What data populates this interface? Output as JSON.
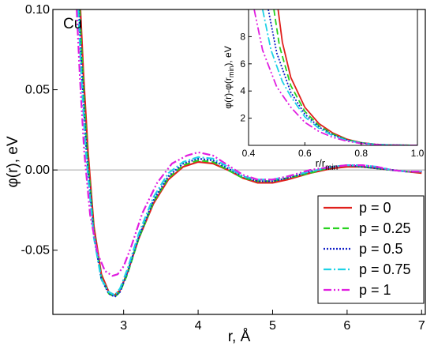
{
  "chart_data": [
    {
      "type": "line",
      "panel": "main",
      "title": "Cu",
      "xlabel": "r, Å",
      "ylabel": "φ(r), eV",
      "xlim": [
        2.05,
        7.05
      ],
      "ylim": [
        -0.09,
        0.1
      ],
      "xticks": [
        3,
        4,
        5,
        6,
        7
      ],
      "xtick_labels": [
        "3",
        "4",
        "5",
        "6",
        "7"
      ],
      "yticks": [
        -0.05,
        0.0,
        0.05,
        0.1
      ],
      "ytick_labels": [
        "-0.05",
        "0.00",
        "0.05",
        "0.10"
      ],
      "zero_line": true,
      "grid": false,
      "legend": "bottom-right",
      "series": [
        {
          "name": "p = 0",
          "color": "#e0201c",
          "dash": "solid",
          "x": [
            2.42,
            2.46,
            2.52,
            2.6,
            2.7,
            2.8,
            2.88,
            2.95,
            3.05,
            3.2,
            3.4,
            3.6,
            3.8,
            4.0,
            4.2,
            4.4,
            4.6,
            4.8,
            5.0,
            5.2,
            5.5,
            5.8,
            6.0,
            6.2,
            6.4,
            6.6,
            6.8,
            7.0
          ],
          "y": [
            0.1,
            0.06,
            0.012,
            -0.035,
            -0.065,
            -0.076,
            -0.078,
            -0.075,
            -0.064,
            -0.043,
            -0.021,
            -0.006,
            0.002,
            0.005,
            0.004,
            0.0,
            -0.005,
            -0.008,
            -0.008,
            -0.006,
            -0.002,
            0.001,
            0.002,
            0.002,
            0.001,
            0.0,
            -0.001,
            -0.002
          ]
        },
        {
          "name": "p = 0.25",
          "color": "#27d21f",
          "dash": "8,4",
          "x": [
            2.41,
            2.45,
            2.51,
            2.6,
            2.7,
            2.8,
            2.88,
            2.95,
            3.05,
            3.2,
            3.4,
            3.6,
            3.8,
            4.0,
            4.2,
            4.4,
            4.6,
            4.8,
            5.0,
            5.2,
            5.5,
            5.8,
            6.0,
            6.2,
            6.4,
            6.6,
            6.8,
            7.0
          ],
          "y": [
            0.1,
            0.06,
            0.012,
            -0.038,
            -0.067,
            -0.077,
            -0.079,
            -0.076,
            -0.065,
            -0.043,
            -0.02,
            -0.005,
            0.003,
            0.006,
            0.005,
            0.0,
            -0.005,
            -0.007,
            -0.007,
            -0.005,
            -0.002,
            0.002,
            0.003,
            0.002,
            0.001,
            0.0,
            -0.001,
            -0.001
          ]
        },
        {
          "name": "p = 0.5",
          "color": "#1320c8",
          "dash": "2,2",
          "x": [
            2.4,
            2.44,
            2.5,
            2.6,
            2.7,
            2.8,
            2.88,
            2.95,
            3.05,
            3.2,
            3.4,
            3.6,
            3.8,
            4.0,
            4.2,
            4.4,
            4.6,
            4.8,
            5.0,
            5.2,
            5.5,
            5.8,
            6.0,
            6.2,
            6.4,
            6.6,
            6.8,
            7.0
          ],
          "y": [
            0.1,
            0.06,
            0.012,
            -0.04,
            -0.068,
            -0.077,
            -0.079,
            -0.076,
            -0.064,
            -0.042,
            -0.019,
            -0.004,
            0.004,
            0.007,
            0.006,
            0.001,
            -0.004,
            -0.007,
            -0.007,
            -0.005,
            -0.001,
            0.002,
            0.003,
            0.002,
            0.001,
            0.0,
            -0.001,
            -0.001
          ]
        },
        {
          "name": "p = 0.75",
          "color": "#1ed2e6",
          "dash": "10,3,2,3",
          "x": [
            2.39,
            2.43,
            2.49,
            2.6,
            2.7,
            2.8,
            2.88,
            2.95,
            3.05,
            3.2,
            3.4,
            3.6,
            3.8,
            4.0,
            4.2,
            4.4,
            4.6,
            4.8,
            5.0,
            5.2,
            5.5,
            5.8,
            6.0,
            6.2,
            6.4,
            6.6,
            6.8,
            7.0
          ],
          "y": [
            0.1,
            0.06,
            0.012,
            -0.042,
            -0.068,
            -0.076,
            -0.078,
            -0.074,
            -0.062,
            -0.04,
            -0.017,
            -0.002,
            0.005,
            0.008,
            0.007,
            0.002,
            -0.004,
            -0.006,
            -0.006,
            -0.004,
            -0.001,
            0.002,
            0.003,
            0.003,
            0.002,
            0.0,
            -0.001,
            -0.001
          ]
        },
        {
          "name": "p = 1",
          "color": "#e01ee0",
          "dash": "10,3,2,3,2,3",
          "x": [
            2.37,
            2.41,
            2.47,
            2.55,
            2.65,
            2.75,
            2.85,
            2.92,
            3.0,
            3.1,
            3.25,
            3.45,
            3.65,
            3.85,
            4.0,
            4.2,
            4.4,
            4.6,
            4.8,
            5.0,
            5.2,
            5.5,
            5.8,
            6.0,
            6.2,
            6.4,
            6.6,
            6.8,
            7.0
          ],
          "y": [
            0.1,
            0.06,
            0.012,
            -0.028,
            -0.052,
            -0.063,
            -0.066,
            -0.065,
            -0.06,
            -0.048,
            -0.027,
            -0.008,
            0.004,
            0.009,
            0.011,
            0.009,
            0.003,
            -0.003,
            -0.006,
            -0.006,
            -0.004,
            0.0,
            0.002,
            0.003,
            0.003,
            0.002,
            0.0,
            -0.001,
            -0.001
          ]
        }
      ]
    },
    {
      "type": "line",
      "panel": "inset",
      "xlabel": "r/r",
      "xlabel_sub": "min",
      "ylabel": "φ(r)-φ(r",
      "ylabel_sub": "min",
      "ylabel_tail": "), eV",
      "xlim": [
        0.4,
        1.0
      ],
      "ylim": [
        0,
        10
      ],
      "xticks": [
        0.4,
        0.6,
        0.8,
        1.0
      ],
      "xtick_labels": [
        "0.4",
        "0.6",
        "0.8",
        "1.0"
      ],
      "yticks": [
        0,
        2,
        4,
        6,
        8
      ],
      "ytick_labels": [
        "0",
        "2",
        "4",
        "6",
        "8"
      ],
      "series": [
        {
          "name": "p = 0",
          "color": "#e0201c",
          "dash": "solid",
          "x": [
            0.505,
            0.52,
            0.55,
            0.6,
            0.65,
            0.7,
            0.75,
            0.8,
            0.85,
            0.9,
            0.95,
            1.0
          ],
          "y": [
            10,
            7.6,
            5.0,
            2.8,
            1.6,
            0.9,
            0.45,
            0.2,
            0.08,
            0.03,
            0.01,
            0.0
          ]
        },
        {
          "name": "p = 0.25",
          "color": "#27d21f",
          "dash": "8,4",
          "x": [
            0.49,
            0.51,
            0.55,
            0.6,
            0.65,
            0.7,
            0.75,
            0.8,
            0.85,
            0.9,
            0.95,
            1.0
          ],
          "y": [
            10,
            7.3,
            4.4,
            2.5,
            1.45,
            0.82,
            0.42,
            0.19,
            0.08,
            0.03,
            0.01,
            0.0
          ]
        },
        {
          "name": "p = 0.5",
          "color": "#1320c8",
          "dash": "2,2",
          "x": [
            0.47,
            0.5,
            0.55,
            0.6,
            0.65,
            0.7,
            0.75,
            0.8,
            0.85,
            0.9,
            0.95,
            1.0
          ],
          "y": [
            10,
            6.8,
            3.9,
            2.3,
            1.35,
            0.76,
            0.39,
            0.18,
            0.07,
            0.03,
            0.01,
            0.0
          ]
        },
        {
          "name": "p = 0.75",
          "color": "#1ed2e6",
          "dash": "10,3,2,3",
          "x": [
            0.45,
            0.48,
            0.52,
            0.55,
            0.6,
            0.65,
            0.7,
            0.75,
            0.8,
            0.85,
            0.9,
            0.95,
            1.0
          ],
          "y": [
            10,
            7.0,
            4.7,
            3.6,
            2.1,
            1.25,
            0.7,
            0.36,
            0.16,
            0.07,
            0.03,
            0.01,
            0.0
          ]
        },
        {
          "name": "p = 1",
          "color": "#e01ee0",
          "dash": "10,3,2,3,2,3",
          "x": [
            0.42,
            0.45,
            0.5,
            0.55,
            0.6,
            0.65,
            0.7,
            0.75,
            0.8,
            0.85,
            0.9,
            0.95,
            1.0
          ],
          "y": [
            10,
            7.0,
            4.3,
            2.8,
            1.7,
            1.02,
            0.58,
            0.3,
            0.14,
            0.06,
            0.02,
            0.01,
            0.0
          ]
        }
      ]
    }
  ]
}
